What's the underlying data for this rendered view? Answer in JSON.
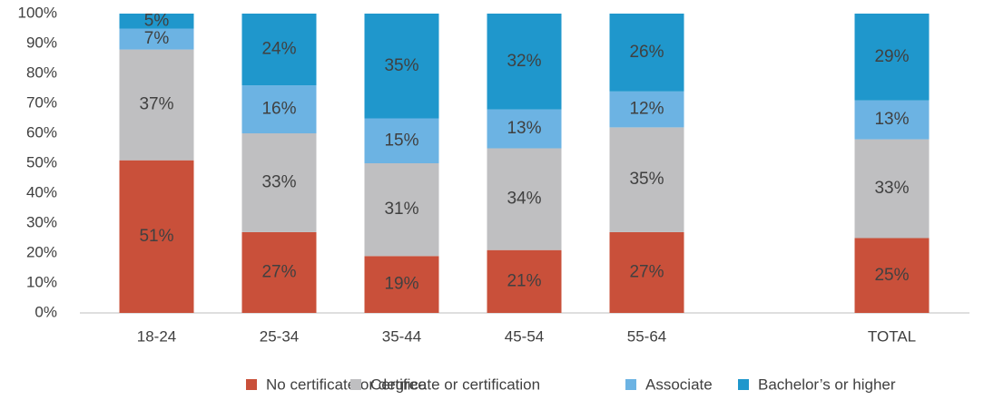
{
  "chart_data": {
    "type": "stacked_bar",
    "categories": [
      "18-24",
      "25-34",
      "35-44",
      "45-54",
      "55-64",
      null,
      "TOTAL"
    ],
    "series": [
      {
        "name": "No certificate or degree",
        "color": "#c9503a",
        "values": [
          51,
          27,
          19,
          21,
          27,
          null,
          25
        ],
        "value_labels": [
          "51%",
          "27%",
          "19%",
          "21%",
          "27%",
          null,
          "25%"
        ]
      },
      {
        "name": "Certificate or certification",
        "color": "#bfbfc1",
        "values": [
          37,
          33,
          31,
          34,
          35,
          null,
          33
        ],
        "value_labels": [
          "37%",
          "33%",
          "31%",
          "34%",
          "35%",
          null,
          "33%"
        ]
      },
      {
        "name": "Associate",
        "color": "#6cb3e3",
        "values": [
          7,
          16,
          15,
          13,
          12,
          null,
          13
        ],
        "value_labels": [
          "7%",
          "16%",
          "15%",
          "13%",
          "12%",
          null,
          "13%"
        ]
      },
      {
        "name": "Bachelor’s or higher",
        "color": "#1f97cc",
        "values": [
          5,
          24,
          35,
          32,
          26,
          null,
          29
        ],
        "value_labels": [
          "5%",
          "24%",
          "35%",
          "32%",
          "26%",
          null,
          "29%"
        ]
      }
    ],
    "ylim": [
      0,
      100
    ],
    "yticks": [
      {
        "value": 0,
        "label": "0%"
      },
      {
        "value": 10,
        "label": "10%"
      },
      {
        "value": 20,
        "label": "20%"
      },
      {
        "value": 30,
        "label": "30%"
      },
      {
        "value": 40,
        "label": "40%"
      },
      {
        "value": 50,
        "label": "50%"
      },
      {
        "value": 60,
        "label": "60%"
      },
      {
        "value": 70,
        "label": "70%"
      },
      {
        "value": 80,
        "label": "80%"
      },
      {
        "value": 90,
        "label": "90%"
      },
      {
        "value": 100,
        "label": "100%"
      }
    ],
    "grid": false,
    "legend": "bottom"
  }
}
